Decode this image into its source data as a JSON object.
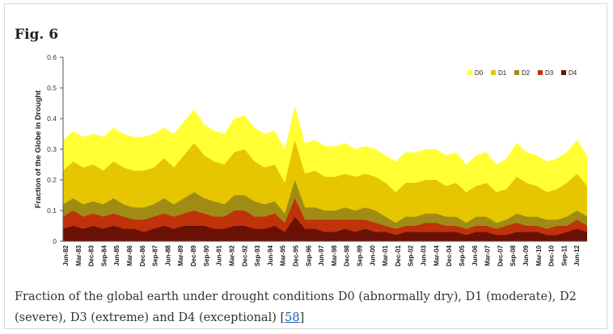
{
  "figure": {
    "title": "Fig. 6",
    "caption_text": "Fraction of the global earth under drought conditions D0 (abnormally dry), D1 (moderate), D2 (severe), D3 (extreme) and D4 (exceptional) [",
    "caption_ref": "58",
    "caption_close": "]"
  },
  "chart_data": {
    "type": "area",
    "stacked": false,
    "xlabel": "",
    "ylabel": "Fraction of the Globe in Drought",
    "ylim": [
      0,
      0.6
    ],
    "yticks": [
      "0",
      "0.1",
      "0.2",
      "0.3",
      "0.4",
      "0.5",
      "0.6"
    ],
    "x_tick_labels": [
      "Jun-82",
      "Mar-83",
      "Dec-83",
      "Sep-84",
      "Jun-85",
      "Mar-86",
      "Dec-86",
      "Sep-87",
      "Jun-88",
      "Mar-89",
      "Dec-89",
      "Sep-90",
      "Jun-91",
      "Mar-92",
      "Dec-92",
      "Sep-93",
      "Jun-94",
      "Mar-95",
      "Dec-95",
      "Sep-96",
      "Jun-97",
      "Mar-98",
      "Dec-98",
      "Sep-99",
      "Jun-00",
      "Mar-01",
      "Dec-01",
      "Sep-02",
      "Jun-03",
      "Mar-04",
      "Dec-04",
      "Sep-05",
      "Jun-06",
      "Mar-07",
      "Dec-07",
      "Sep-08",
      "Jun-09",
      "Mar-10",
      "Dec-10",
      "Sep-11",
      "Jun-12"
    ],
    "legend_position": "top-right",
    "series": [
      {
        "name": "D0",
        "color": "#ffff33",
        "values": [
          0.33,
          0.36,
          0.34,
          0.35,
          0.34,
          0.37,
          0.35,
          0.34,
          0.34,
          0.35,
          0.37,
          0.35,
          0.39,
          0.43,
          0.38,
          0.36,
          0.35,
          0.4,
          0.41,
          0.37,
          0.35,
          0.36,
          0.3,
          0.44,
          0.32,
          0.33,
          0.31,
          0.31,
          0.32,
          0.3,
          0.31,
          0.3,
          0.28,
          0.26,
          0.29,
          0.29,
          0.3,
          0.3,
          0.28,
          0.29,
          0.25,
          0.28,
          0.29,
          0.25,
          0.27,
          0.32,
          0.29,
          0.28,
          0.26,
          0.27,
          0.29,
          0.33,
          0.28
        ]
      },
      {
        "name": "D1",
        "color": "#e6c600",
        "values": [
          0.23,
          0.26,
          0.24,
          0.25,
          0.23,
          0.26,
          0.24,
          0.23,
          0.23,
          0.24,
          0.27,
          0.24,
          0.28,
          0.32,
          0.28,
          0.26,
          0.25,
          0.29,
          0.3,
          0.26,
          0.24,
          0.25,
          0.19,
          0.33,
          0.22,
          0.23,
          0.21,
          0.21,
          0.22,
          0.21,
          0.22,
          0.21,
          0.19,
          0.16,
          0.19,
          0.19,
          0.2,
          0.2,
          0.18,
          0.19,
          0.16,
          0.18,
          0.19,
          0.16,
          0.17,
          0.21,
          0.19,
          0.18,
          0.16,
          0.17,
          0.19,
          0.22,
          0.18
        ]
      },
      {
        "name": "D2",
        "color": "#a08c14",
        "values": [
          0.12,
          0.14,
          0.12,
          0.13,
          0.12,
          0.14,
          0.12,
          0.11,
          0.11,
          0.12,
          0.14,
          0.12,
          0.14,
          0.16,
          0.14,
          0.13,
          0.12,
          0.15,
          0.15,
          0.13,
          0.12,
          0.13,
          0.09,
          0.2,
          0.11,
          0.11,
          0.1,
          0.1,
          0.11,
          0.1,
          0.11,
          0.1,
          0.08,
          0.06,
          0.08,
          0.08,
          0.09,
          0.09,
          0.08,
          0.08,
          0.06,
          0.08,
          0.08,
          0.06,
          0.07,
          0.09,
          0.08,
          0.08,
          0.07,
          0.07,
          0.08,
          0.1,
          0.08
        ]
      },
      {
        "name": "D3",
        "color": "#c0320a",
        "values": [
          0.08,
          0.1,
          0.08,
          0.09,
          0.08,
          0.09,
          0.08,
          0.07,
          0.07,
          0.08,
          0.09,
          0.08,
          0.09,
          0.1,
          0.09,
          0.08,
          0.08,
          0.1,
          0.1,
          0.08,
          0.08,
          0.09,
          0.06,
          0.14,
          0.07,
          0.07,
          0.07,
          0.07,
          0.07,
          0.07,
          0.07,
          0.06,
          0.05,
          0.04,
          0.05,
          0.05,
          0.06,
          0.06,
          0.05,
          0.05,
          0.04,
          0.05,
          0.05,
          0.04,
          0.05,
          0.06,
          0.05,
          0.05,
          0.04,
          0.05,
          0.05,
          0.07,
          0.05
        ]
      },
      {
        "name": "D4",
        "color": "#6b1005",
        "values": [
          0.04,
          0.05,
          0.04,
          0.05,
          0.04,
          0.05,
          0.04,
          0.04,
          0.03,
          0.04,
          0.05,
          0.04,
          0.05,
          0.05,
          0.05,
          0.04,
          0.04,
          0.05,
          0.05,
          0.04,
          0.04,
          0.05,
          0.03,
          0.08,
          0.04,
          0.04,
          0.03,
          0.03,
          0.04,
          0.03,
          0.04,
          0.03,
          0.03,
          0.02,
          0.03,
          0.03,
          0.03,
          0.03,
          0.03,
          0.03,
          0.02,
          0.03,
          0.03,
          0.02,
          0.02,
          0.03,
          0.03,
          0.03,
          0.02,
          0.02,
          0.03,
          0.04,
          0.03
        ]
      }
    ]
  }
}
